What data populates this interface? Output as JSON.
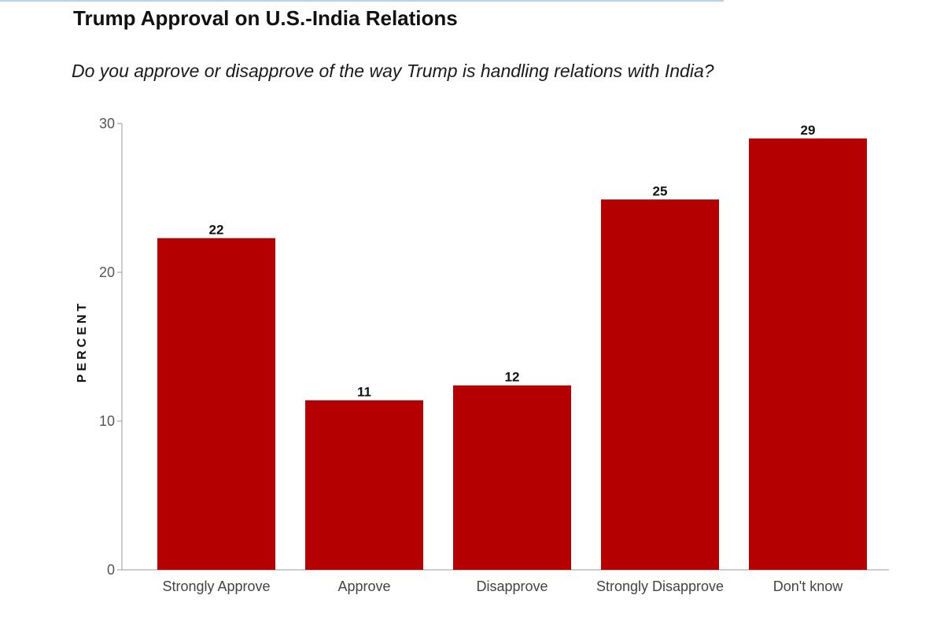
{
  "chart_data": {
    "type": "bar",
    "title": "Trump Approval on U.S.-India Relations",
    "subtitle": "Do you approve or disapprove of the way Trump is handling relations with India?",
    "ylabel": "PERCENT",
    "xlabel": "",
    "categories": [
      "Strongly Approve",
      "Approve",
      "Disapprove",
      "Strongly Disapprove",
      "Don't know"
    ],
    "values": [
      22.3,
      11.4,
      12.4,
      24.9,
      29.0
    ],
    "value_labels": [
      "22",
      "11",
      "12",
      "25",
      "29"
    ],
    "ylim": [
      0,
      30
    ],
    "yticks": [
      0,
      10,
      20,
      30
    ],
    "grid": false,
    "bar_color": "#b40000",
    "axis_color": "#9a9a9a"
  }
}
